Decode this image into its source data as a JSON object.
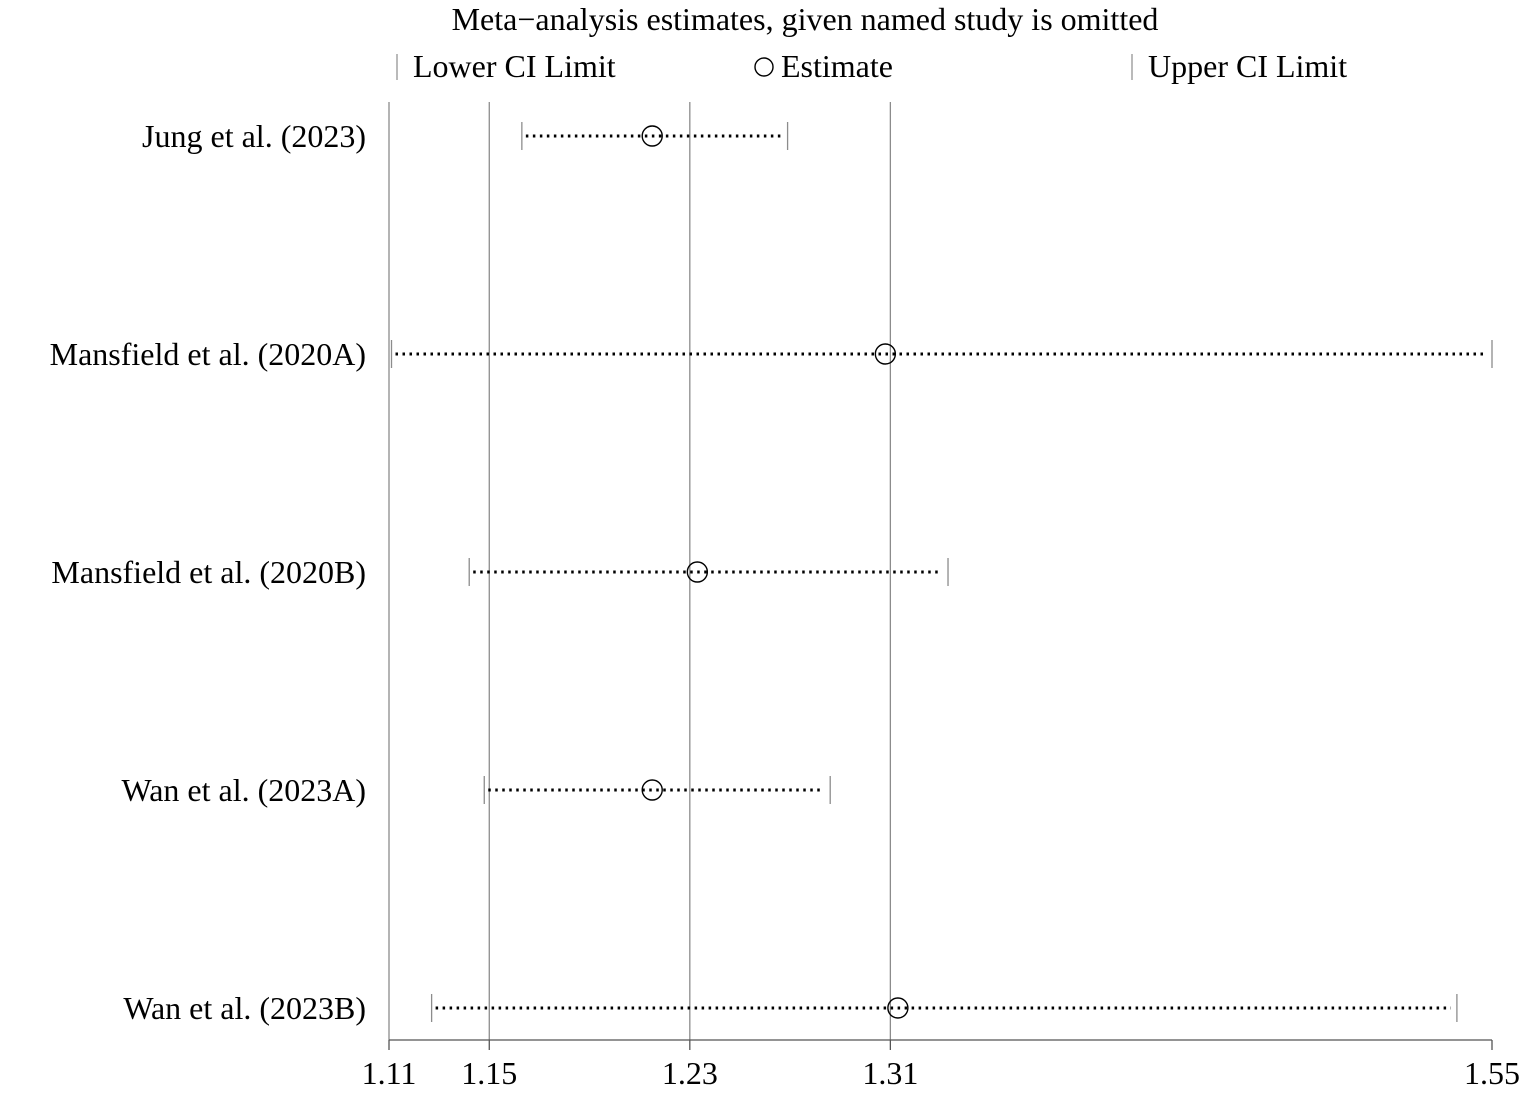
{
  "chart_data": {
    "type": "forest",
    "title": "Meta−analysis estimates, given named study is omitted",
    "legend": {
      "placement": "top",
      "items": [
        {
          "symbol": "lower-tick",
          "label": "Lower CI Limit"
        },
        {
          "symbol": "circle",
          "label": "Estimate"
        },
        {
          "symbol": "upper-tick",
          "label": "Upper CI Limit"
        }
      ]
    },
    "xlim": [
      1.11,
      1.55
    ],
    "x_ticks": [
      {
        "value": 1.11,
        "label": "1.11"
      },
      {
        "value": 1.15,
        "label": "1.15"
      },
      {
        "value": 1.23,
        "label": "1.23"
      },
      {
        "value": 1.31,
        "label": "1.31"
      },
      {
        "value": 1.55,
        "label": "1.55"
      }
    ],
    "reference_lines": [
      1.11,
      1.15,
      1.23,
      1.31
    ],
    "studies": [
      {
        "label": "Jung et al. (2023)",
        "lower": 1.163,
        "estimate": 1.215,
        "upper": 1.269
      },
      {
        "label": "Mansfield et al. (2020A)",
        "lower": 1.111,
        "estimate": 1.308,
        "upper": 1.55
      },
      {
        "label": "Mansfield et al. (2020B)",
        "lower": 1.142,
        "estimate": 1.233,
        "upper": 1.333
      },
      {
        "label": "Wan et al. (2023A)",
        "lower": 1.148,
        "estimate": 1.215,
        "upper": 1.286
      },
      {
        "label": "Wan et al. (2023B)",
        "lower": 1.127,
        "estimate": 1.313,
        "upper": 1.536
      }
    ],
    "colors": {
      "marks": "#000000",
      "reference_lines": "#8c8c8c",
      "axis": "#555555"
    }
  }
}
